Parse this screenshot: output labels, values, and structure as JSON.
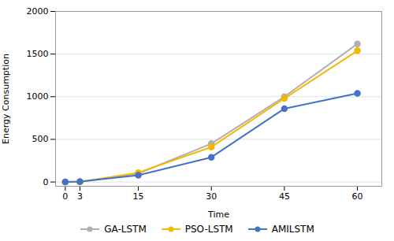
{
  "chart_data": {
    "type": "line",
    "xlabel": "Time",
    "ylabel": "Energy Consumption",
    "x": [
      0,
      3,
      15,
      30,
      45,
      60
    ],
    "series": [
      {
        "name": "GA-LSTM",
        "color": "#b0b0b0",
        "values": [
          0,
          0,
          100,
          450,
          1000,
          1620
        ]
      },
      {
        "name": "PSO-LSTM",
        "color": "#f5b800",
        "values": [
          0,
          0,
          110,
          410,
          980,
          1540
        ]
      },
      {
        "name": "AMILSTM",
        "color": "#4472c4",
        "values": [
          0,
          5,
          80,
          290,
          860,
          1040
        ]
      }
    ],
    "xlim": [
      -2,
      65
    ],
    "ylim": [
      -50,
      2000
    ],
    "xticks": [
      0,
      3,
      15,
      30,
      45,
      60
    ],
    "yticks": [
      0,
      500,
      1000,
      1500,
      2000
    ],
    "grid": true,
    "legend": "bottom",
    "marker": "circle"
  }
}
